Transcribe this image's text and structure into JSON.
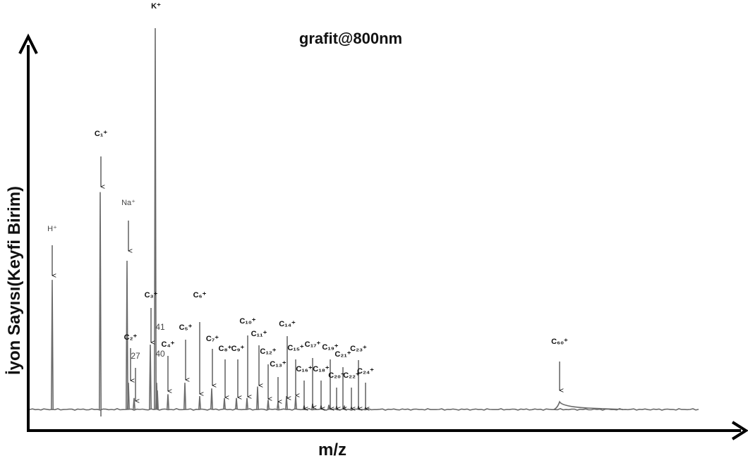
{
  "chart_data": {
    "type": "line",
    "title": "grafit@800nm",
    "xlabel": "m/z",
    "ylabel": "İyon Sayısı(Keyfi Birim)",
    "grid": false,
    "legend": "none",
    "line_color": "#6b6b6b",
    "peaks": [
      {
        "label": "H⁺",
        "x": 1,
        "y": 0.34,
        "style": "plain"
      },
      {
        "label": "C₁⁺",
        "x": 12,
        "y": 0.57,
        "style": "bold"
      },
      {
        "label": "Na⁺",
        "x": 23,
        "y": 0.39,
        "style": "plain"
      },
      {
        "label": "C₂⁺",
        "x": 24,
        "y": 0.07,
        "style": "bold"
      },
      {
        "label": "27",
        "x": 27,
        "y": 0.03,
        "style": "num"
      },
      {
        "label": "C₃⁺",
        "x": 36,
        "y": 0.17,
        "style": "bold"
      },
      {
        "label": "K⁺",
        "x": 39,
        "y": 1.0,
        "style": "bold"
      },
      {
        "label": "40",
        "x": 40,
        "y": 0.07,
        "style": "num"
      },
      {
        "label": "41",
        "x": 41,
        "y": 0.05,
        "style": "num"
      },
      {
        "label": "C₄⁺",
        "x": 48,
        "y": 0.04,
        "style": "bold"
      },
      {
        "label": "C₅⁺",
        "x": 60,
        "y": 0.07,
        "style": "bold"
      },
      {
        "label": "C₆⁺",
        "x": 72,
        "y": 0.035,
        "style": "bold"
      },
      {
        "label": "C₇⁺",
        "x": 84,
        "y": 0.055,
        "style": "bold"
      },
      {
        "label": "C₈⁺",
        "x": 96,
        "y": 0.03,
        "style": "bold"
      },
      {
        "label": "C₉⁺",
        "x": 108,
        "y": 0.03,
        "style": "bold"
      },
      {
        "label": "C₁₀⁺",
        "x": 120,
        "y": 0.03,
        "style": "bold"
      },
      {
        "label": "C₁₁⁺",
        "x": 132,
        "y": 0.06,
        "style": "bold"
      },
      {
        "label": "C₁₂⁺",
        "x": 144,
        "y": 0.025,
        "style": "bold"
      },
      {
        "label": "C₁₃⁺",
        "x": 156,
        "y": 0.02,
        "style": "bold"
      },
      {
        "label": "C₁₄⁺",
        "x": 168,
        "y": 0.035,
        "style": "bold"
      },
      {
        "label": "C₁₅⁺",
        "x": 180,
        "y": 0.035,
        "style": "bold"
      },
      {
        "label": "C₁₆⁺",
        "x": 192,
        "y": 0.01,
        "style": "bold"
      },
      {
        "label": "C₁₇⁺",
        "x": 204,
        "y": 0.015,
        "style": "bold"
      },
      {
        "label": "C₁₈⁺",
        "x": 216,
        "y": 0.01,
        "style": "bold"
      },
      {
        "label": "C₁₉⁺",
        "x": 228,
        "y": 0.012,
        "style": "bold"
      },
      {
        "label": "C₂₀⁺",
        "x": 240,
        "y": 0.008,
        "style": "bold"
      },
      {
        "label": "C₂₁⁺",
        "x": 252,
        "y": 0.01,
        "style": "bold"
      },
      {
        "label": "C₂₂⁺",
        "x": 264,
        "y": 0.006,
        "style": "bold"
      },
      {
        "label": "C₂₃⁺",
        "x": 276,
        "y": 0.008,
        "style": "bold"
      },
      {
        "label": "C₂₄⁺",
        "x": 288,
        "y": 0.005,
        "style": "bold"
      },
      {
        "label": "C₆₀⁺",
        "x": 720,
        "y": 0.02,
        "style": "bold"
      }
    ]
  }
}
